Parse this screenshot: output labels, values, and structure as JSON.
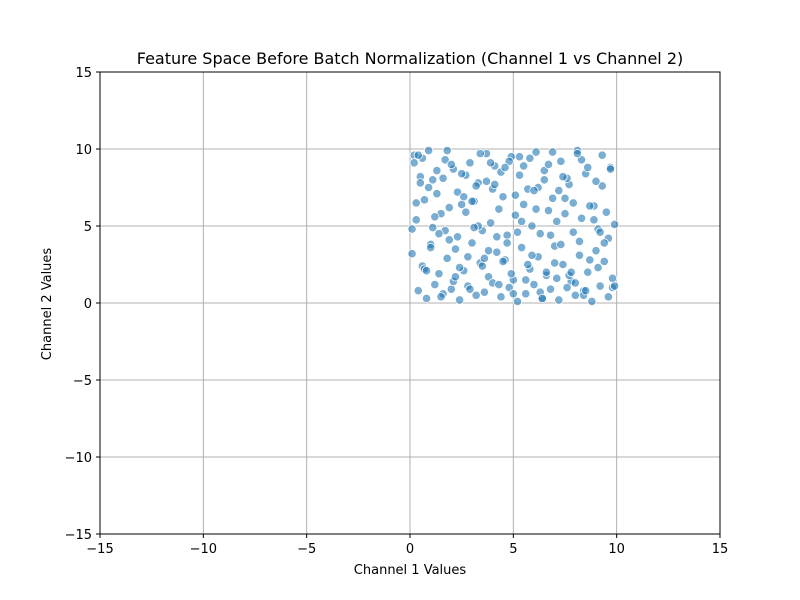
{
  "chart_data": {
    "type": "scatter",
    "title": "Feature Space Before Batch Normalization (Channel 1 vs Channel 2)",
    "xlabel": "Channel 1 Values",
    "ylabel": "Channel 2 Values",
    "xlim": [
      -15,
      15
    ],
    "ylim": [
      -15,
      15
    ],
    "xticks": [
      -15,
      -10,
      -5,
      0,
      5,
      10,
      15
    ],
    "yticks": [
      -15,
      -10,
      -5,
      0,
      5,
      10,
      15
    ],
    "xtick_labels": [
      "−15",
      "−10",
      "−5",
      "0",
      "5",
      "10",
      "15"
    ],
    "ytick_labels": [
      "−15",
      "−10",
      "−5",
      "0",
      "5",
      "10",
      "15"
    ],
    "grid": true,
    "legend": "none",
    "colors": {
      "marker": "#1f77b4",
      "edge": "#ffffff",
      "grid": "#b0b0b0"
    },
    "series": [
      {
        "x": [
          0.2,
          0.5,
          0.9,
          1.3,
          1.7,
          2.1,
          2.5,
          2.9,
          3.3,
          3.7,
          4.1,
          4.5,
          4.9,
          5.3,
          5.7,
          6.1,
          6.5,
          6.9,
          7.3,
          7.7,
          8.1,
          8.5,
          8.9,
          9.3,
          9.7,
          0.3,
          0.7,
          1.1,
          1.5,
          1.9,
          2.3,
          2.7,
          3.1,
          3.5,
          3.9,
          4.3,
          4.7,
          5.1,
          5.5,
          5.9,
          6.3,
          6.7,
          7.1,
          7.5,
          7.9,
          8.3,
          8.7,
          9.1,
          9.5,
          9.9,
          0.1,
          0.6,
          1.0,
          1.4,
          1.8,
          2.2,
          2.6,
          3.0,
          3.4,
          3.8,
          4.2,
          4.6,
          5.0,
          5.4,
          5.8,
          6.2,
          6.6,
          7.0,
          7.4,
          7.8,
          8.2,
          8.6,
          9.0,
          9.4,
          9.8,
          0.4,
          0.8,
          1.2,
          1.6,
          2.0,
          2.4,
          2.8,
          3.2,
          3.6,
          4.0,
          4.4,
          4.8,
          5.2,
          5.6,
          6.0,
          6.4,
          6.8,
          7.2,
          7.6,
          8.0,
          8.4,
          8.8,
          9.2,
          9.6,
          0.2,
          0.9,
          1.6,
          2.3,
          3.0,
          3.7,
          4.4,
          5.1,
          5.8,
          6.5,
          7.2,
          7.9,
          8.6,
          9.3,
          0.5,
          1.2,
          1.9,
          2.6,
          3.3,
          4.0,
          4.7,
          5.4,
          6.1,
          6.8,
          7.5,
          8.2,
          8.9,
          9.6,
          0.3,
          1.0,
          1.7,
          2.4,
          3.1,
          3.8,
          4.5,
          5.2,
          5.9,
          6.6,
          7.3,
          8.0,
          8.7,
          9.4,
          0.7,
          1.4,
          2.1,
          2.8,
          3.5,
          4.2,
          4.9,
          5.6,
          6.3,
          7.0,
          7.7,
          8.4,
          9.1,
          9.8,
          0.1,
          0.8,
          1.5,
          2.2,
          2.9,
          3.6,
          4.3,
          5.0,
          5.7,
          6.4,
          7.1,
          7.8,
          8.5,
          9.2,
          9.9,
          0.6,
          1.3,
          2.0,
          2.7,
          3.4,
          4.1,
          4.8,
          5.5,
          6.2,
          6.9,
          7.6,
          8.3,
          9.0,
          9.7,
          0.4,
          1.1,
          1.8,
          2.5,
          3.2,
          3.9,
          4.6,
          5.3,
          6.0,
          6.7,
          7.4,
          8.1
        ],
        "y": [
          9.6,
          8.2,
          9.9,
          7.1,
          9.3,
          8.7,
          6.4,
          9.1,
          7.8,
          9.7,
          8.9,
          6.9,
          9.5,
          8.3,
          7.4,
          9.8,
          8.6,
          6.8,
          9.2,
          7.7,
          9.9,
          8.4,
          6.3,
          9.6,
          8.8,
          5.4,
          6.7,
          4.9,
          5.8,
          6.2,
          4.3,
          5.9,
          6.6,
          4.7,
          5.2,
          6.1,
          4.4,
          5.7,
          6.4,
          5.0,
          4.5,
          6.0,
          5.3,
          6.8,
          4.6,
          5.5,
          6.3,
          4.8,
          5.9,
          5.1,
          3.2,
          2.4,
          3.8,
          1.9,
          2.9,
          3.5,
          2.1,
          3.9,
          2.6,
          1.7,
          3.3,
          2.8,
          1.5,
          3.6,
          2.2,
          3.0,
          1.8,
          3.7,
          2.5,
          1.4,
          3.1,
          2.0,
          3.4,
          2.7,
          1.6,
          0.8,
          0.3,
          1.2,
          0.6,
          0.9,
          0.2,
          1.1,
          0.5,
          0.7,
          1.3,
          0.4,
          1.0,
          0.1,
          0.6,
          1.2,
          0.3,
          0.9,
          0.2,
          1.0,
          0.5,
          0.8,
          0.1,
          1.1,
          0.4,
          9.1,
          7.5,
          8.1,
          7.2,
          6.6,
          7.9,
          8.5,
          7.0,
          9.4,
          8.0,
          7.3,
          6.5,
          8.8,
          7.6,
          7.8,
          5.6,
          4.1,
          6.9,
          5.0,
          7.4,
          3.9,
          5.3,
          6.1,
          4.4,
          5.8,
          4.0,
          5.4,
          4.2,
          6.5,
          3.6,
          4.7,
          2.3,
          4.9,
          3.4,
          2.7,
          4.6,
          3.1,
          2.0,
          3.8,
          1.3,
          2.8,
          3.9,
          2.2,
          4.5,
          1.4,
          3.0,
          2.4,
          4.3,
          1.9,
          1.5,
          0.7,
          2.6,
          1.8,
          0.5,
          2.3,
          1.0,
          4.8,
          2.1,
          0.4,
          1.7,
          0.9,
          2.9,
          1.2,
          0.6,
          2.5,
          0.3,
          1.6,
          2.0,
          0.8,
          4.6,
          1.1,
          9.4,
          8.6,
          9.0,
          8.3,
          9.7,
          7.7,
          9.2,
          8.9,
          7.5,
          9.8,
          8.1,
          9.3,
          7.9,
          8.7,
          9.6,
          8.0,
          9.9,
          8.4,
          7.6,
          9.1,
          8.8,
          9.5,
          7.3,
          9.0,
          8.2,
          9.7
        ]
      }
    ]
  }
}
